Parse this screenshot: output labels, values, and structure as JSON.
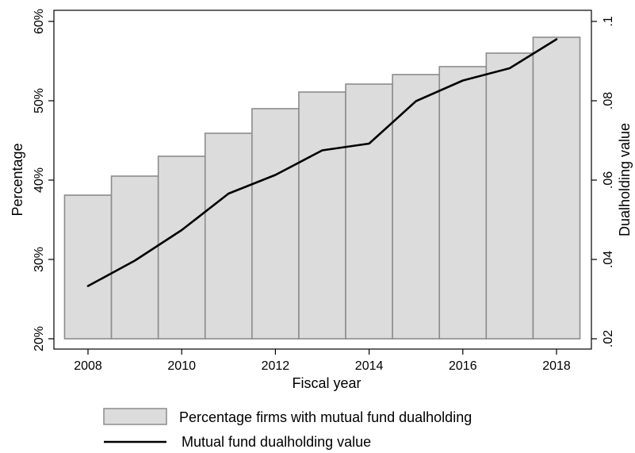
{
  "chart_data": {
    "type": "bar",
    "xlabel": "Fiscal year",
    "ylabel_left": "Percentage",
    "ylabel_right": "Dualholding value",
    "x": [
      2008,
      2009,
      2010,
      2011,
      2012,
      2013,
      2014,
      2015,
      2016,
      2017,
      2018
    ],
    "x_tick_labels": [
      "2008",
      "2010",
      "2012",
      "2014",
      "2016",
      "2018"
    ],
    "y_left": {
      "range": [
        20,
        60
      ],
      "ticks": [
        20,
        30,
        40,
        50,
        60
      ],
      "tick_labels": [
        "20%",
        "30%",
        "40%",
        "50%",
        "60%"
      ]
    },
    "y_right": {
      "range": [
        0.02,
        0.1
      ],
      "ticks": [
        0.02,
        0.04,
        0.06,
        0.08,
        0.1
      ],
      "tick_labels": [
        ".02",
        ".04",
        ".06",
        ".08",
        ".1"
      ]
    },
    "grid": false,
    "legend_position": "bottom",
    "series": [
      {
        "name": "Percentage firms with mutual fund dualholding",
        "type": "bar",
        "axis": "left",
        "color": "#dcdcdc",
        "edge_color": "#8c8c8c",
        "values": [
          38.1,
          40.5,
          43.0,
          45.9,
          49.0,
          51.1,
          52.1,
          53.3,
          54.3,
          56.0,
          58.0
        ]
      },
      {
        "name": "Mutual fund dualholding value",
        "type": "line",
        "axis": "right",
        "color": "#000000",
        "values": [
          0.0333,
          0.0397,
          0.0474,
          0.0566,
          0.0613,
          0.0675,
          0.0692,
          0.0799,
          0.0851,
          0.0882,
          0.0955
        ]
      }
    ]
  }
}
